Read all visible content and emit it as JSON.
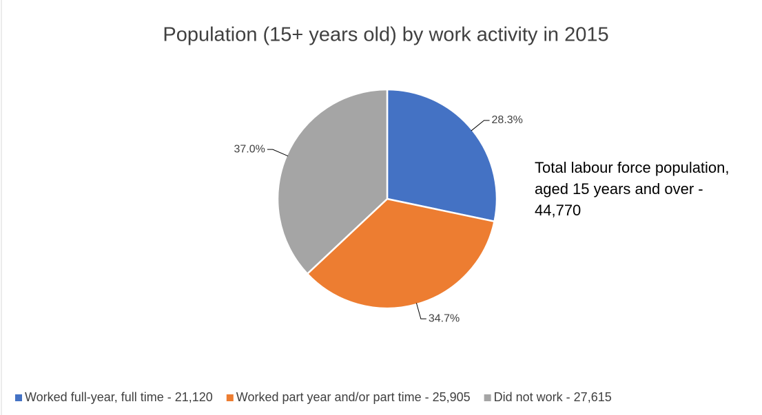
{
  "chart_data": {
    "type": "pie",
    "title": "Population (15+ years old) by work activity in 2015",
    "categories": [
      "Worked full-year, full time - 21,120",
      "Worked part year and/or part time - 25,905",
      "Did not work - 27,615"
    ],
    "values": [
      28.3,
      34.7,
      37.0
    ],
    "value_labels": [
      "28.3%",
      "34.7%",
      "37.0%"
    ],
    "colors": [
      "#4472c4",
      "#ed7d31",
      "#a5a5a5"
    ],
    "annotation": "Total labour force population, aged 15 years and over - 44,770",
    "legend": "bottom"
  }
}
